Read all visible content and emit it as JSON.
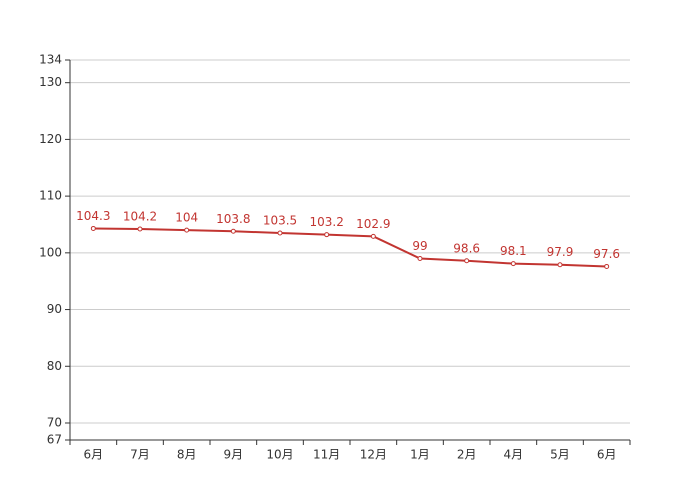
{
  "chart_data": {
    "type": "line",
    "categories": [
      "6月",
      "7月",
      "8月",
      "9月",
      "10月",
      "11月",
      "12月",
      "1月",
      "2月",
      "4月",
      "5月",
      "6月"
    ],
    "series": [
      {
        "color": "#c23531",
        "values": [
          104.3,
          104.2,
          104,
          103.8,
          103.5,
          103.2,
          102.9,
          99,
          98.6,
          98.1,
          97.9,
          97.6
        ]
      }
    ],
    "ylim": [
      67,
      134
    ],
    "yticks": [
      67,
      70,
      80,
      90,
      100,
      110,
      120,
      130,
      134
    ],
    "grid": true
  }
}
